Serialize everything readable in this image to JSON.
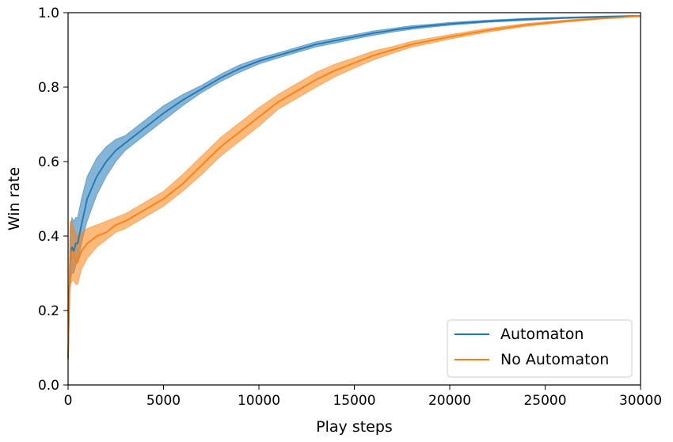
{
  "chart_data": {
    "type": "line",
    "xlabel": "Play steps",
    "ylabel": "Win rate",
    "xlim": [
      0,
      30000
    ],
    "ylim": [
      0.0,
      1.0
    ],
    "xticks": [
      0,
      5000,
      10000,
      15000,
      20000,
      25000,
      30000
    ],
    "yticks": [
      0.0,
      0.2,
      0.4,
      0.6,
      0.8,
      1.0
    ],
    "xtick_labels": [
      "0",
      "5000",
      "10000",
      "15000",
      "20000",
      "25000",
      "30000"
    ],
    "ytick_labels": [
      "0.0",
      "0.2",
      "0.4",
      "0.6",
      "0.8",
      "1.0"
    ],
    "grid": false,
    "legend_position": "lower-right",
    "series": [
      {
        "name": "Automaton",
        "color": "#1f77b4",
        "x": [
          0,
          100,
          200,
          300,
          400,
          500,
          700,
          1000,
          1500,
          2000,
          2500,
          3000,
          4000,
          5000,
          6000,
          7000,
          8000,
          9000,
          10000,
          11000,
          12000,
          13000,
          14000,
          15000,
          16000,
          17000,
          18000,
          19000,
          20000,
          22000,
          24000,
          26000,
          28000,
          30000
        ],
        "y": [
          0.07,
          0.33,
          0.37,
          0.36,
          0.38,
          0.38,
          0.43,
          0.5,
          0.56,
          0.6,
          0.63,
          0.65,
          0.69,
          0.73,
          0.765,
          0.795,
          0.825,
          0.85,
          0.87,
          0.885,
          0.9,
          0.915,
          0.925,
          0.935,
          0.945,
          0.953,
          0.96,
          0.965,
          0.97,
          0.977,
          0.982,
          0.986,
          0.989,
          0.991
        ],
        "lower": [
          0.07,
          0.27,
          0.3,
          0.3,
          0.32,
          0.33,
          0.38,
          0.44,
          0.51,
          0.56,
          0.6,
          0.63,
          0.67,
          0.71,
          0.75,
          0.785,
          0.815,
          0.84,
          0.862,
          0.878,
          0.893,
          0.908,
          0.918,
          0.929,
          0.939,
          0.948,
          0.955,
          0.961,
          0.966,
          0.974,
          0.979,
          0.984,
          0.987,
          0.989
        ],
        "upper": [
          0.07,
          0.41,
          0.45,
          0.44,
          0.45,
          0.45,
          0.5,
          0.56,
          0.61,
          0.64,
          0.66,
          0.67,
          0.71,
          0.75,
          0.78,
          0.805,
          0.835,
          0.86,
          0.878,
          0.892,
          0.907,
          0.922,
          0.932,
          0.941,
          0.951,
          0.958,
          0.965,
          0.969,
          0.974,
          0.98,
          0.985,
          0.988,
          0.991,
          0.993
        ]
      },
      {
        "name": "No Automaton",
        "color": "#ff7f0e",
        "x": [
          0,
          100,
          200,
          300,
          400,
          500,
          700,
          1000,
          1500,
          2000,
          2500,
          3000,
          4000,
          5000,
          6000,
          7000,
          8000,
          9000,
          10000,
          11000,
          12000,
          13000,
          14000,
          15000,
          16000,
          17000,
          18000,
          19000,
          20000,
          22000,
          24000,
          26000,
          28000,
          30000
        ],
        "y": [
          0.07,
          0.34,
          0.36,
          0.35,
          0.33,
          0.33,
          0.36,
          0.38,
          0.4,
          0.41,
          0.43,
          0.44,
          0.47,
          0.5,
          0.54,
          0.59,
          0.64,
          0.68,
          0.72,
          0.76,
          0.79,
          0.82,
          0.845,
          0.865,
          0.885,
          0.9,
          0.915,
          0.925,
          0.935,
          0.953,
          0.967,
          0.977,
          0.985,
          0.991
        ],
        "lower": [
          0.07,
          0.26,
          0.28,
          0.28,
          0.27,
          0.27,
          0.31,
          0.34,
          0.37,
          0.39,
          0.41,
          0.42,
          0.45,
          0.48,
          0.52,
          0.565,
          0.615,
          0.655,
          0.695,
          0.74,
          0.77,
          0.8,
          0.828,
          0.851,
          0.873,
          0.891,
          0.907,
          0.918,
          0.929,
          0.948,
          0.963,
          0.974,
          0.983,
          0.989
        ],
        "upper": [
          0.07,
          0.44,
          0.44,
          0.42,
          0.41,
          0.4,
          0.41,
          0.42,
          0.43,
          0.44,
          0.45,
          0.46,
          0.49,
          0.52,
          0.565,
          0.615,
          0.665,
          0.705,
          0.745,
          0.78,
          0.81,
          0.84,
          0.862,
          0.879,
          0.897,
          0.909,
          0.923,
          0.932,
          0.941,
          0.958,
          0.971,
          0.98,
          0.987,
          0.993
        ]
      }
    ]
  }
}
